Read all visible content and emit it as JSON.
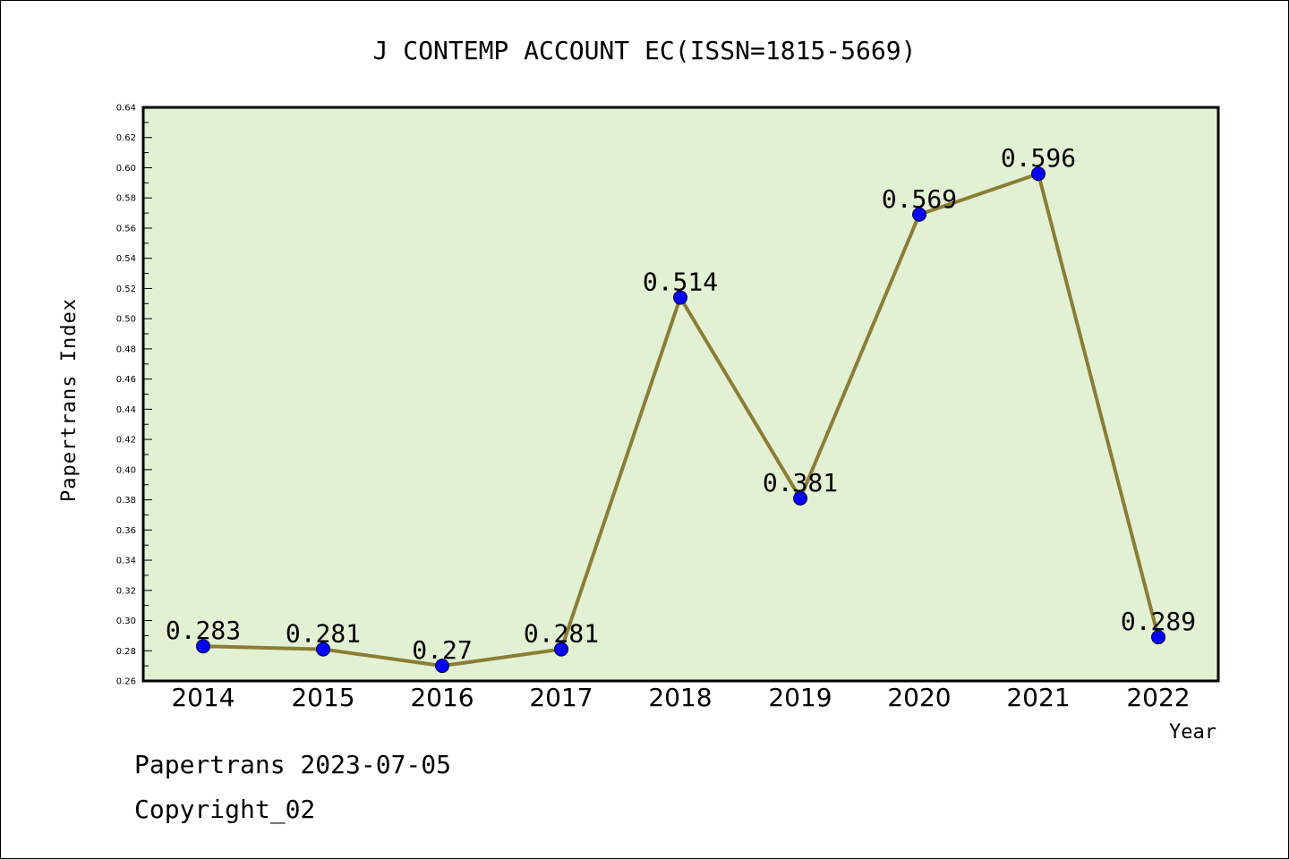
{
  "chart_data": {
    "type": "line",
    "title": "J CONTEMP ACCOUNT EC(ISSN=1815-5669)",
    "xlabel": "Year",
    "ylabel": "Papertrans Index",
    "ylim": [
      0.26,
      0.64
    ],
    "ytick_step": 0.02,
    "yticks": [
      "0.26",
      "0.28",
      "0.30",
      "0.32",
      "0.34",
      "0.36",
      "0.38",
      "0.40",
      "0.42",
      "0.44",
      "0.46",
      "0.48",
      "0.50",
      "0.52",
      "0.54",
      "0.56",
      "0.58",
      "0.60",
      "0.62",
      "0.64"
    ],
    "categories": [
      "2014",
      "2015",
      "2016",
      "2017",
      "2018",
      "2019",
      "2020",
      "2021",
      "2022"
    ],
    "series": [
      {
        "values": [
          0.283,
          0.281,
          0.27,
          0.281,
          0.514,
          0.381,
          0.569,
          0.596,
          0.289
        ],
        "labels": [
          "0.283",
          "0.281",
          "0.27",
          "0.281",
          "0.514",
          "0.381",
          "0.569",
          "0.596",
          "0.289"
        ]
      }
    ],
    "grid": false,
    "colors": {
      "plot_background": "#e2f0d4",
      "line": "#8b7d35",
      "marker": "#0000ff"
    }
  },
  "footer": {
    "line1": "Papertrans 2023-07-05",
    "line2": "Copyright_02"
  }
}
